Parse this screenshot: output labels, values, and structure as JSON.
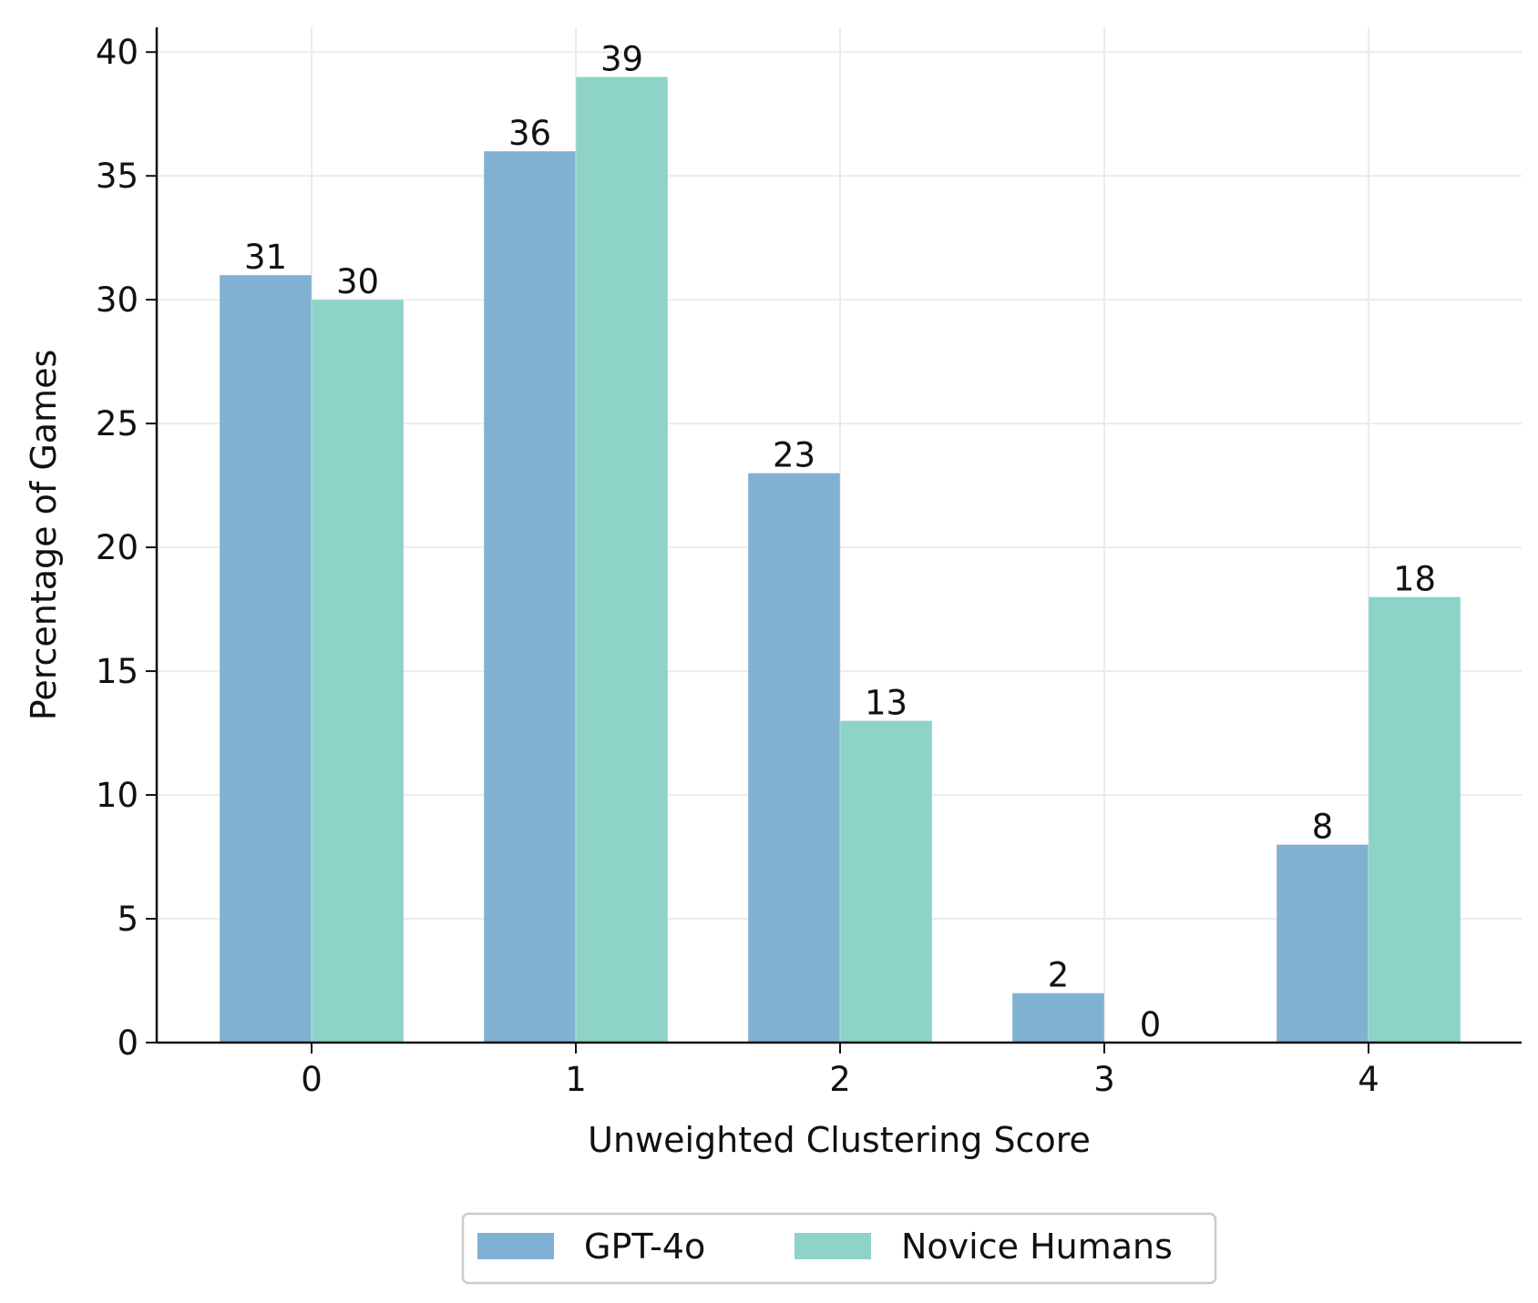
{
  "chart_data": {
    "type": "bar",
    "categories": [
      "0",
      "1",
      "2",
      "3",
      "4"
    ],
    "series": [
      {
        "name": "GPT-4o",
        "values": [
          31,
          36,
          23,
          2,
          8
        ],
        "color": "#80b1d3"
      },
      {
        "name": "Novice Humans",
        "values": [
          30,
          39,
          13,
          0,
          18
        ],
        "color": "#8dd3c7"
      }
    ],
    "xlabel": "Unweighted Clustering Score",
    "ylabel": "Percentage of Games",
    "ylim": [
      0,
      41
    ],
    "yticks": [
      0,
      5,
      10,
      15,
      20,
      25,
      30,
      35,
      40
    ],
    "grid": true,
    "legend_position": "bottom-center",
    "data_labels": true
  }
}
